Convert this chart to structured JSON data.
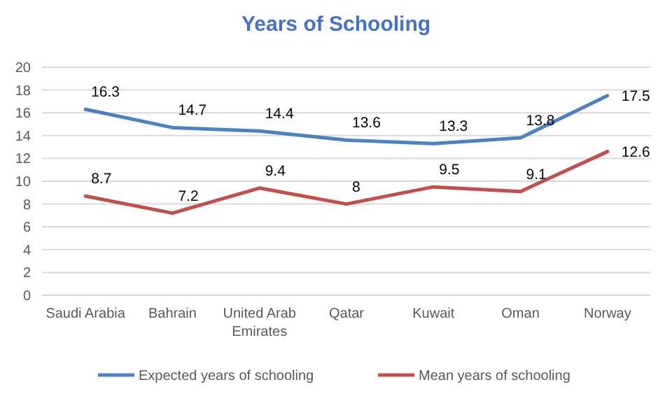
{
  "chart_data": {
    "type": "line",
    "title": "Years of Schooling",
    "categories": [
      "Saudi Arabia",
      "Bahrain",
      "United Arab Emirates",
      "Qatar",
      "Kuwait",
      "Oman",
      "Norway"
    ],
    "series": [
      {
        "name": "Expected years of schooling",
        "color": "#4f81bd",
        "values": [
          16.3,
          14.7,
          14.4,
          13.6,
          13.3,
          13.8,
          17.5
        ]
      },
      {
        "name": "Mean years of schooling",
        "color": "#c0504d",
        "values": [
          8.7,
          7.2,
          9.4,
          8,
          9.5,
          9.1,
          12.6
        ]
      }
    ],
    "ylim": [
      0,
      20
    ],
    "yticks": [
      0,
      2,
      4,
      6,
      8,
      10,
      12,
      14,
      16,
      18,
      20
    ],
    "grid": "y",
    "legend": "bottom",
    "data_labels": true,
    "marker": "none",
    "line_style": "solid"
  }
}
